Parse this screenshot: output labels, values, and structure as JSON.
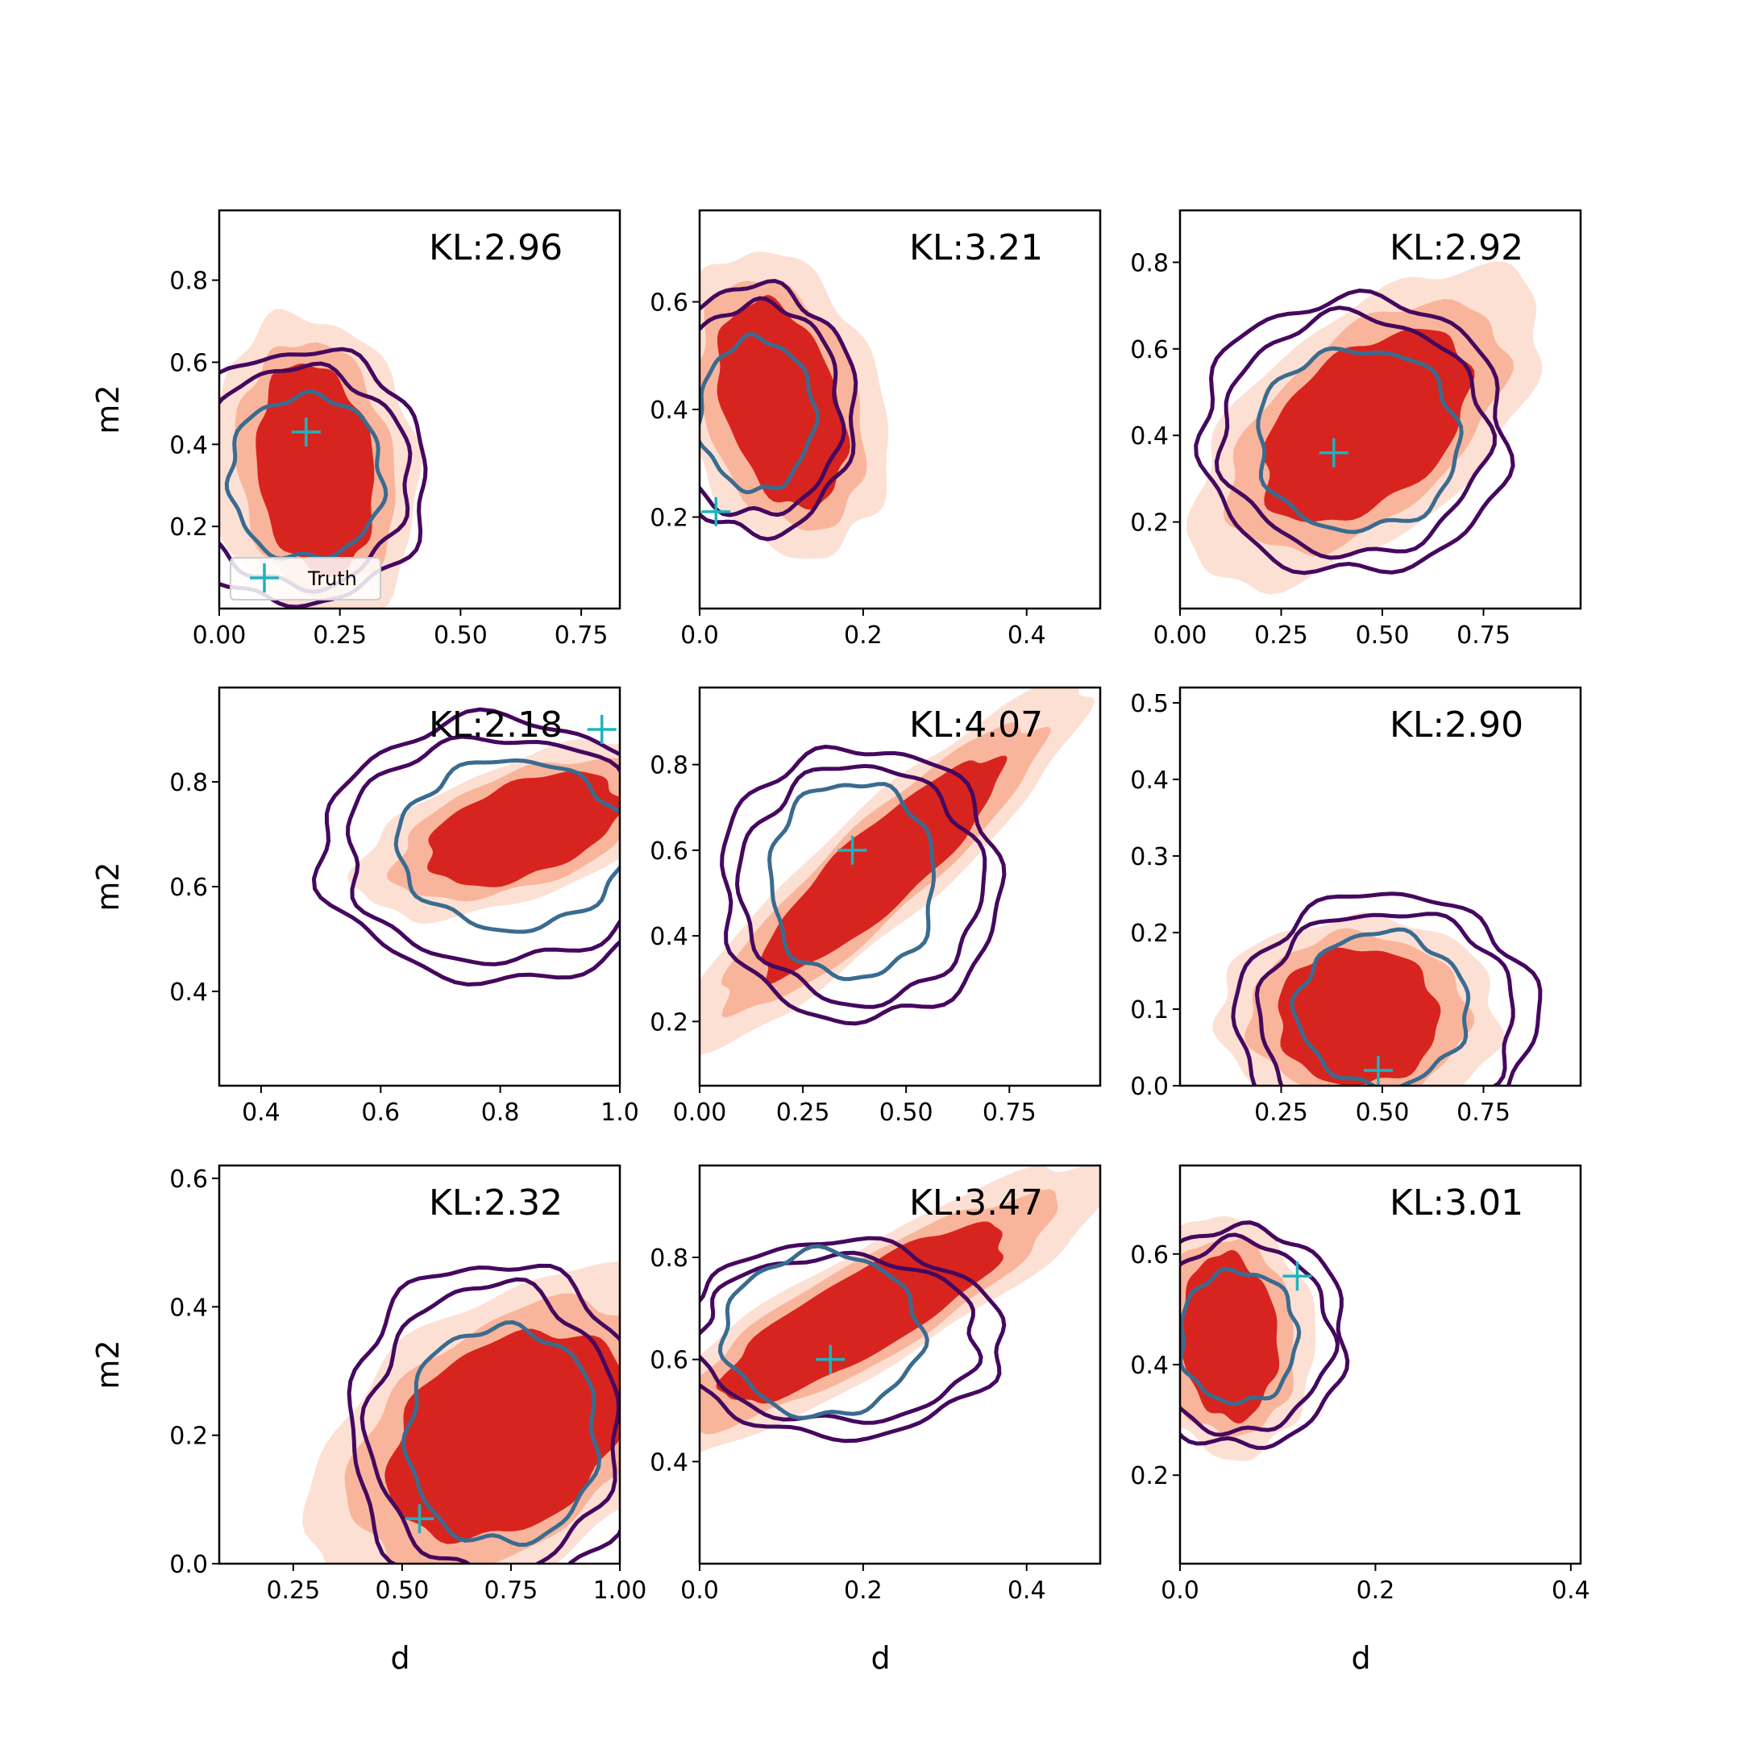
{
  "figure": {
    "xlabel": "d",
    "ylabel": "m2",
    "legend_label": "Truth",
    "colors": {
      "fill_outer": "#fde0d4",
      "fill_mid": "#f9b59b",
      "fill_inner": "#d8241e",
      "contour_outer": "#45085f",
      "contour_inner": "#3a6b90",
      "truth_marker": "#19b5c0"
    }
  },
  "chart_data": [
    {
      "type": "contour",
      "title": "KL:2.96",
      "xlim": [
        0,
        0.83
      ],
      "ylim": [
        0,
        0.97
      ],
      "xticks": [
        {
          "v": 0,
          "l": "0.00"
        },
        {
          "v": 0.25,
          "l": "0.25"
        },
        {
          "v": 0.5,
          "l": "0.50"
        },
        {
          "v": 0.75,
          "l": "0.75"
        }
      ],
      "yticks": [
        {
          "v": 0.2,
          "l": "0.2"
        },
        {
          "v": 0.4,
          "l": "0.4"
        },
        {
          "v": 0.6,
          "l": "0.6"
        },
        {
          "v": 0.8,
          "l": "0.8"
        }
      ],
      "truth": [
        0.18,
        0.43
      ],
      "fill_blob": {
        "cx": 0.2,
        "cy": 0.34,
        "rx": 0.12,
        "ry": 0.26,
        "rot": -8
      },
      "outer_contour": {
        "cx": 0.17,
        "cy": 0.32,
        "rx": 0.26,
        "ry": 0.31
      },
      "inner_contour": {
        "cx": 0.18,
        "cy": 0.32,
        "rx": 0.16,
        "ry": 0.2
      },
      "show_xlabel": false,
      "show_ylabel": true,
      "legend": true
    },
    {
      "type": "contour",
      "title": "KL:3.21",
      "xlim": [
        0,
        0.49
      ],
      "ylim": [
        0.03,
        0.77
      ],
      "xticks": [
        {
          "v": 0,
          "l": "0.0"
        },
        {
          "v": 0.2,
          "l": "0.2"
        },
        {
          "v": 0.4,
          "l": "0.4"
        }
      ],
      "yticks": [
        {
          "v": 0.2,
          "l": "0.2"
        },
        {
          "v": 0.4,
          "l": "0.4"
        },
        {
          "v": 0.6,
          "l": "0.6"
        }
      ],
      "truth": [
        0.02,
        0.21
      ],
      "fill_blob": {
        "cx": 0.1,
        "cy": 0.41,
        "rx": 0.07,
        "ry": 0.2,
        "rot": -18
      },
      "outer_contour": {
        "cx": 0.07,
        "cy": 0.4,
        "rx": 0.12,
        "ry": 0.23
      },
      "inner_contour": {
        "cx": 0.07,
        "cy": 0.39,
        "rx": 0.07,
        "ry": 0.14
      },
      "show_xlabel": false,
      "show_ylabel": false,
      "legend": false
    },
    {
      "type": "contour",
      "title": "KL:2.92",
      "xlim": [
        0,
        0.99
      ],
      "ylim": [
        0,
        0.92
      ],
      "xticks": [
        {
          "v": 0,
          "l": "0.00"
        },
        {
          "v": 0.25,
          "l": "0.25"
        },
        {
          "v": 0.5,
          "l": "0.50"
        },
        {
          "v": 0.75,
          "l": "0.75"
        }
      ],
      "yticks": [
        {
          "v": 0.2,
          "l": "0.2"
        },
        {
          "v": 0.4,
          "l": "0.4"
        },
        {
          "v": 0.6,
          "l": "0.6"
        },
        {
          "v": 0.8,
          "l": "0.8"
        }
      ],
      "truth": [
        0.38,
        0.36
      ],
      "fill_blob": {
        "cx": 0.46,
        "cy": 0.42,
        "rx": 0.3,
        "ry": 0.17,
        "rot": -40
      },
      "outer_contour": {
        "cx": 0.43,
        "cy": 0.4,
        "rx": 0.38,
        "ry": 0.32
      },
      "inner_contour": {
        "cx": 0.44,
        "cy": 0.39,
        "rx": 0.25,
        "ry": 0.21
      },
      "show_xlabel": false,
      "show_ylabel": false,
      "legend": false
    },
    {
      "type": "contour",
      "title": "KL:2.18",
      "xlim": [
        0.33,
        1.0
      ],
      "ylim": [
        0.22,
        0.98
      ],
      "xticks": [
        {
          "v": 0.4,
          "l": "0.4"
        },
        {
          "v": 0.6,
          "l": "0.6"
        },
        {
          "v": 0.8,
          "l": "0.8"
        },
        {
          "v": 1.0,
          "l": "1.0"
        }
      ],
      "yticks": [
        {
          "v": 0.4,
          "l": "0.4"
        },
        {
          "v": 0.6,
          "l": "0.6"
        },
        {
          "v": 0.8,
          "l": "0.8"
        }
      ],
      "truth": [
        0.97,
        0.9
      ],
      "fill_blob": {
        "cx": 0.84,
        "cy": 0.71,
        "rx": 0.17,
        "ry": 0.09,
        "rot": -20
      },
      "outer_contour": {
        "cx": 0.8,
        "cy": 0.67,
        "rx": 0.3,
        "ry": 0.25
      },
      "inner_contour": {
        "cx": 0.82,
        "cy": 0.68,
        "rx": 0.19,
        "ry": 0.16
      },
      "show_xlabel": false,
      "show_ylabel": true,
      "legend": false
    },
    {
      "type": "contour",
      "title": "KL:4.07",
      "xlim": [
        0,
        0.97
      ],
      "ylim": [
        0.05,
        0.98
      ],
      "xticks": [
        {
          "v": 0,
          "l": "0.00"
        },
        {
          "v": 0.25,
          "l": "0.25"
        },
        {
          "v": 0.5,
          "l": "0.50"
        },
        {
          "v": 0.75,
          "l": "0.75"
        }
      ],
      "yticks": [
        {
          "v": 0.2,
          "l": "0.2"
        },
        {
          "v": 0.4,
          "l": "0.4"
        },
        {
          "v": 0.6,
          "l": "0.6"
        },
        {
          "v": 0.8,
          "l": "0.8"
        }
      ],
      "truth": [
        0.37,
        0.6
      ],
      "fill_blob": {
        "cx": 0.44,
        "cy": 0.56,
        "rx": 0.38,
        "ry": 0.09,
        "rot": -42
      },
      "outer_contour": {
        "cx": 0.39,
        "cy": 0.52,
        "rx": 0.34,
        "ry": 0.32
      },
      "inner_contour": {
        "cx": 0.37,
        "cy": 0.53,
        "rx": 0.2,
        "ry": 0.23
      },
      "show_xlabel": false,
      "show_ylabel": false,
      "legend": false
    },
    {
      "type": "contour",
      "title": "KL:2.90",
      "xlim": [
        0,
        0.99
      ],
      "ylim": [
        0,
        0.52
      ],
      "xticks": [
        {
          "v": 0.25,
          "l": "0.25"
        },
        {
          "v": 0.5,
          "l": "0.50"
        },
        {
          "v": 0.75,
          "l": "0.75"
        }
      ],
      "yticks": [
        {
          "v": 0,
          "l": "0.0"
        },
        {
          "v": 0.1,
          "l": "0.1"
        },
        {
          "v": 0.2,
          "l": "0.2"
        },
        {
          "v": 0.3,
          "l": "0.3"
        },
        {
          "v": 0.4,
          "l": "0.4"
        },
        {
          "v": 0.5,
          "l": "0.5"
        }
      ],
      "truth": [
        0.49,
        0.02
      ],
      "fill_blob": {
        "cx": 0.44,
        "cy": 0.09,
        "rx": 0.2,
        "ry": 0.09,
        "rot": 0
      },
      "outer_contour": {
        "cx": 0.51,
        "cy": 0.09,
        "rx": 0.37,
        "ry": 0.16
      },
      "inner_contour": {
        "cx": 0.5,
        "cy": 0.1,
        "rx": 0.21,
        "ry": 0.1
      },
      "show_xlabel": false,
      "show_ylabel": false,
      "legend": false
    },
    {
      "type": "contour",
      "title": "KL:2.32",
      "xlim": [
        0.08,
        1.0
      ],
      "ylim": [
        0,
        0.62
      ],
      "xticks": [
        {
          "v": 0.25,
          "l": "0.25"
        },
        {
          "v": 0.5,
          "l": "0.50"
        },
        {
          "v": 0.75,
          "l": "0.75"
        },
        {
          "v": 1.0,
          "l": "1.00"
        }
      ],
      "yticks": [
        {
          "v": 0,
          "l": "0.0"
        },
        {
          "v": 0.2,
          "l": "0.2"
        },
        {
          "v": 0.4,
          "l": "0.4"
        },
        {
          "v": 0.6,
          "l": "0.6"
        }
      ],
      "truth": [
        0.54,
        0.07
      ],
      "fill_blob": {
        "cx": 0.74,
        "cy": 0.2,
        "rx": 0.3,
        "ry": 0.14,
        "rot": -35
      },
      "outer_contour": {
        "cx": 0.71,
        "cy": 0.21,
        "rx": 0.33,
        "ry": 0.26
      },
      "inner_contour": {
        "cx": 0.73,
        "cy": 0.2,
        "rx": 0.22,
        "ry": 0.17
      },
      "show_xlabel": true,
      "show_ylabel": true,
      "legend": false
    },
    {
      "type": "contour",
      "title": "KL:3.47",
      "xlim": [
        0,
        0.49
      ],
      "ylim": [
        0.2,
        0.98
      ],
      "xticks": [
        {
          "v": 0,
          "l": "0.0"
        },
        {
          "v": 0.2,
          "l": "0.2"
        },
        {
          "v": 0.4,
          "l": "0.4"
        }
      ],
      "yticks": [
        {
          "v": 0.4,
          "l": "0.4"
        },
        {
          "v": 0.6,
          "l": "0.6"
        },
        {
          "v": 0.8,
          "l": "0.8"
        }
      ],
      "truth": [
        0.16,
        0.6
      ],
      "fill_blob": {
        "cx": 0.2,
        "cy": 0.69,
        "rx": 0.2,
        "ry": 0.08,
        "rot": -30
      },
      "outer_contour": {
        "cx": 0.17,
        "cy": 0.64,
        "rx": 0.2,
        "ry": 0.19
      },
      "inner_contour": {
        "cx": 0.15,
        "cy": 0.65,
        "rx": 0.12,
        "ry": 0.16
      },
      "show_xlabel": true,
      "show_ylabel": false,
      "legend": false
    },
    {
      "type": "contour",
      "title": "KL:3.01",
      "xlim": [
        0,
        0.41
      ],
      "ylim": [
        0.04,
        0.76
      ],
      "xticks": [
        {
          "v": 0,
          "l": "0.0"
        },
        {
          "v": 0.2,
          "l": "0.2"
        },
        {
          "v": 0.4,
          "l": "0.4"
        }
      ],
      "yticks": [
        {
          "v": 0.2,
          "l": "0.2"
        },
        {
          "v": 0.4,
          "l": "0.4"
        },
        {
          "v": 0.6,
          "l": "0.6"
        }
      ],
      "truth": [
        0.12,
        0.56
      ],
      "fill_blob": {
        "cx": 0.05,
        "cy": 0.45,
        "rx": 0.05,
        "ry": 0.15,
        "rot": -5
      },
      "outer_contour": {
        "cx": 0.06,
        "cy": 0.45,
        "rx": 0.11,
        "ry": 0.2
      },
      "inner_contour": {
        "cx": 0.06,
        "cy": 0.45,
        "rx": 0.06,
        "ry": 0.12
      },
      "show_xlabel": true,
      "show_ylabel": false,
      "legend": false
    }
  ]
}
